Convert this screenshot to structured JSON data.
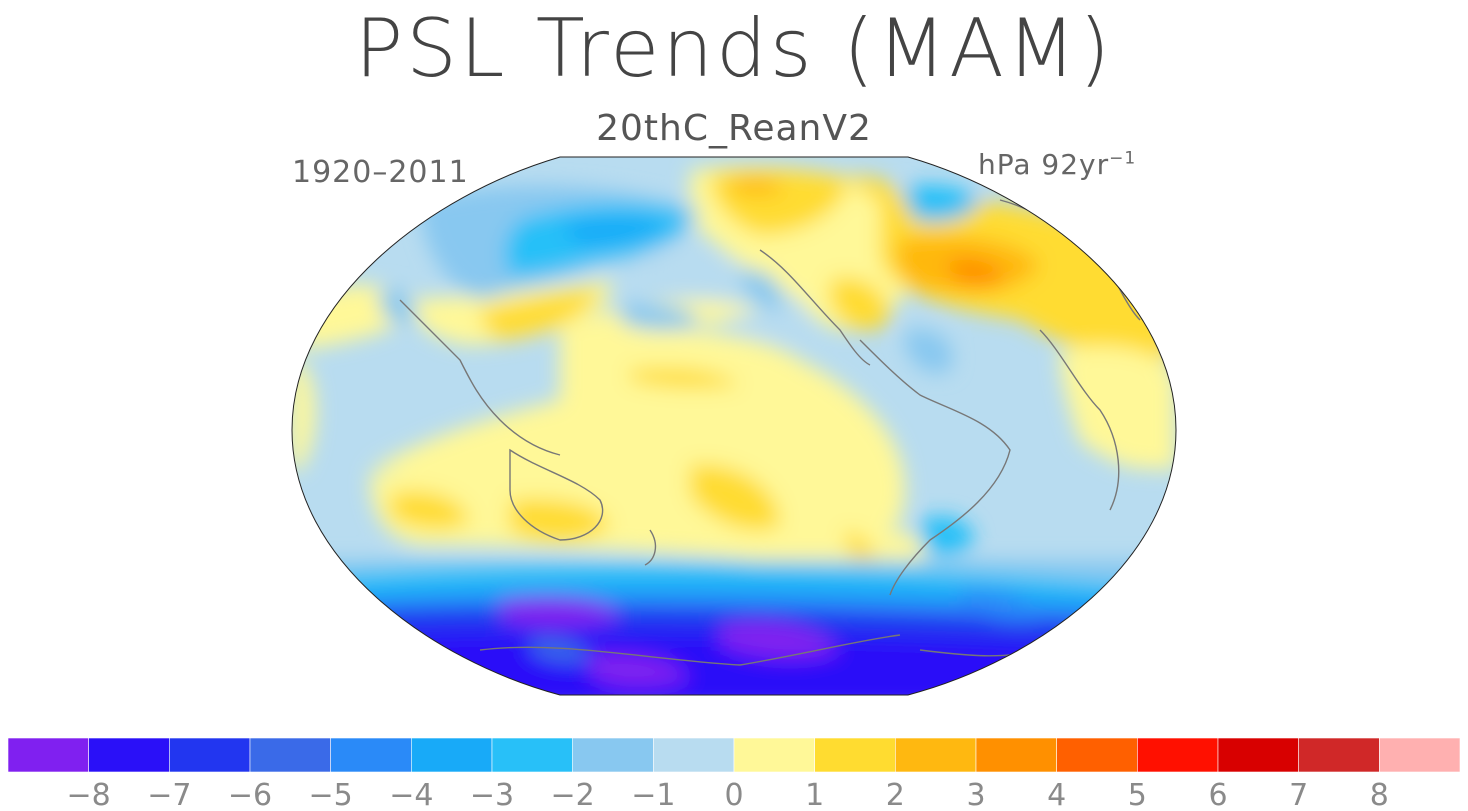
{
  "title": "PSL Trends (MAM)",
  "subtitle": "20thC_ReanV2",
  "period": "1920–2011",
  "units": {
    "base": "hPa 92yr",
    "exponent": "−1"
  },
  "colorbar": {
    "colors": [
      "#8020f0",
      "#2a10f8",
      "#2236f0",
      "#3a6ae8",
      "#2a8af8",
      "#18aaf8",
      "#28c0f8",
      "#88c8f0",
      "#b8dcf0",
      "#fff898",
      "#ffdc30",
      "#ffb810",
      "#ff9000",
      "#ff6000",
      "#ff1000",
      "#d80000",
      "#d02828",
      "#ffb0b0"
    ],
    "tick_labels": [
      "−8",
      "−7",
      "−6",
      "−5",
      "−4",
      "−3",
      "−2",
      "−1",
      "0",
      "1",
      "2",
      "3",
      "4",
      "5",
      "6",
      "7",
      "8"
    ]
  }
}
